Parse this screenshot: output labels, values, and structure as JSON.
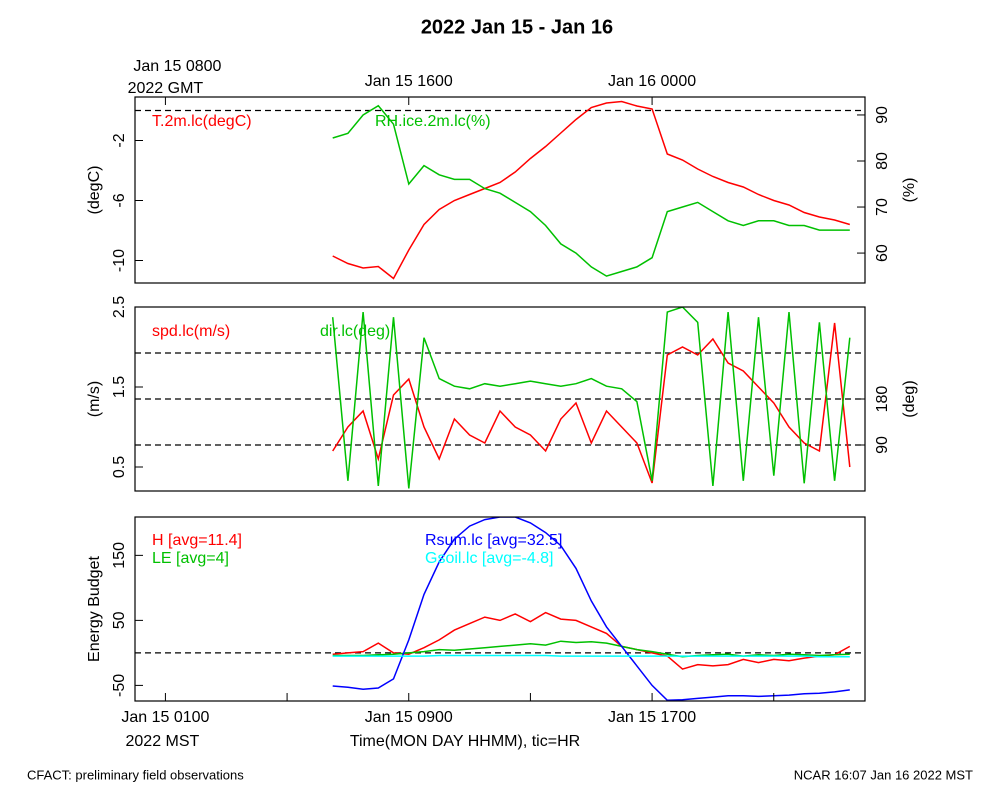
{
  "title": "2022 Jan 15 - Jan 16",
  "footer_left": "CFACT: preliminary field observations",
  "footer_right": "NCAR 16:07 Jan 16 2022 MST",
  "chart_data": [
    {
      "type": "line",
      "xlim": [
        0,
        24
      ],
      "top_xticks": [
        {
          "value": 1,
          "label": "Jan 15 0800"
        },
        {
          "value": 9,
          "label": "Jan 15 1600"
        },
        {
          "value": 17,
          "label": "Jan 16 0000"
        }
      ],
      "top_note": "2022 GMT",
      "x": [
        6.5,
        7,
        7.5,
        8,
        8.5,
        9,
        9.5,
        10,
        10.5,
        11,
        11.5,
        12,
        12.5,
        13,
        13.5,
        14,
        14.5,
        15,
        15.5,
        16,
        16.5,
        17,
        17.5,
        18,
        18.5,
        19,
        19.5,
        20,
        20.5,
        21,
        21.5,
        22,
        22.5,
        23,
        23.5
      ],
      "ylim": [
        -11.5,
        0.9
      ],
      "yticks": [
        -2,
        -6,
        -10
      ],
      "ylabel": "(degC)",
      "y2lim": [
        53.5,
        93.9
      ],
      "y2ticks": [
        90,
        80,
        70,
        60
      ],
      "y2label": "(%)",
      "hlines": [
        0
      ],
      "series": [
        {
          "name": "T.2m.lc(degC)",
          "color": "#ff0000",
          "values": [
            -9.7,
            -10.2,
            -10.5,
            -10.4,
            -11.2,
            -9.3,
            -7.6,
            -6.6,
            -6.0,
            -5.6,
            -5.2,
            -4.8,
            -4.1,
            -3.2,
            -2.4,
            -1.5,
            -0.6,
            0.2,
            0.5,
            0.6,
            0.3,
            0.1,
            -2.9,
            -3.3,
            -3.9,
            -4.4,
            -4.8,
            -5.1,
            -5.6,
            -6.0,
            -6.3,
            -6.8,
            -7.1,
            -7.3,
            -7.6
          ]
        },
        {
          "name": "RH.ice.2m.lc(%)",
          "color": "#00c000",
          "axis": "y2",
          "values": [
            85,
            86,
            90,
            92,
            88,
            75,
            79,
            77,
            76,
            76,
            74,
            73,
            71,
            69,
            66,
            62,
            60,
            57,
            55,
            56,
            57,
            59,
            69,
            70,
            71,
            69,
            67,
            66,
            67,
            67,
            66,
            66,
            65,
            65,
            65
          ]
        }
      ]
    },
    {
      "type": "line",
      "xlim": [
        0,
        24
      ],
      "x": [
        6.5,
        7,
        7.5,
        8,
        8.5,
        9,
        9.5,
        10,
        10.5,
        11,
        11.5,
        12,
        12.5,
        13,
        13.5,
        14,
        14.5,
        15,
        15.5,
        16,
        16.5,
        17,
        17.5,
        18,
        18.5,
        19,
        19.5,
        20,
        20.5,
        21,
        21.5,
        22,
        22.5,
        23,
        23.5
      ],
      "ylim": [
        0.2,
        2.5
      ],
      "yticks": [
        2.5,
        1.5,
        0.5
      ],
      "ylabel": "(m/s)",
      "y2lim": [
        0,
        360
      ],
      "y2ticks": [
        90,
        180
      ],
      "y2label": "(deg)",
      "y2hlines": [
        90,
        180,
        270
      ],
      "series": [
        {
          "name": "spd.lc(m/s)",
          "color": "#ff0000",
          "values": [
            0.7,
            1.0,
            1.2,
            0.6,
            1.4,
            1.6,
            1.0,
            0.6,
            1.1,
            0.9,
            0.8,
            1.2,
            1.0,
            0.9,
            0.7,
            1.1,
            1.3,
            0.8,
            1.2,
            1.0,
            0.8,
            0.3,
            1.9,
            2.0,
            1.9,
            2.1,
            1.8,
            1.7,
            1.5,
            1.3,
            1.0,
            0.8,
            0.7,
            2.3,
            0.5
          ]
        },
        {
          "name": "dir.lc(deg)",
          "color": "#00c000",
          "axis": "y2",
          "values": [
            340,
            20,
            350,
            10,
            340,
            5,
            300,
            220,
            205,
            200,
            210,
            205,
            210,
            215,
            210,
            205,
            210,
            220,
            205,
            200,
            175,
            20,
            350,
            360,
            330,
            10,
            350,
            20,
            340,
            30,
            350,
            15,
            330,
            20,
            300
          ]
        }
      ]
    },
    {
      "type": "line",
      "xlim": [
        0,
        24
      ],
      "xticks": [
        {
          "value": 1,
          "label": "Jan 15 0100"
        },
        {
          "value": 9,
          "label": "Jan 15 0900"
        },
        {
          "value": 17,
          "label": "Jan 15 1700"
        }
      ],
      "xminor": [
        5,
        13,
        21
      ],
      "x_note": "2022 MST",
      "xlabel": "Time(MON DAY HHMM), tic=HR",
      "x": [
        6.5,
        7,
        7.5,
        8,
        8.5,
        9,
        9.5,
        10,
        10.5,
        11,
        11.5,
        12,
        12.5,
        13,
        13.5,
        14,
        14.5,
        15,
        15.5,
        16,
        16.5,
        17,
        17.5,
        18,
        18.5,
        19,
        19.5,
        20,
        20.5,
        21,
        21.5,
        22,
        22.5,
        23,
        23.5
      ],
      "ylim": [
        -74,
        209
      ],
      "yticks": [
        150,
        50,
        -50
      ],
      "ylabel": "Energy Budget",
      "hlines": [
        0
      ],
      "series": [
        {
          "name": "H [avg=11.4]",
          "color": "#ff0000",
          "values": [
            -2,
            0,
            2,
            15,
            0,
            -2,
            8,
            20,
            35,
            45,
            55,
            50,
            60,
            48,
            62,
            52,
            50,
            40,
            30,
            10,
            5,
            0,
            -5,
            -25,
            -18,
            -20,
            -18,
            -10,
            -15,
            -10,
            -12,
            -8,
            -5,
            -3,
            10
          ]
        },
        {
          "name": "LE [avg=4]",
          "color": "#00c000",
          "values": [
            -4,
            -4,
            -4,
            -3,
            -2,
            0,
            2,
            5,
            4,
            6,
            8,
            10,
            12,
            14,
            12,
            18,
            16,
            17,
            15,
            10,
            5,
            2,
            -2,
            -6,
            -4,
            -3,
            -2,
            -5,
            -3,
            -4,
            -2,
            -3,
            -4,
            -3,
            -2
          ]
        },
        {
          "name": "Rsum.lc [avg=32.5]",
          "color": "#0000ff",
          "values": [
            -51,
            -53,
            -56,
            -54,
            -40,
            20,
            90,
            140,
            175,
            195,
            205,
            209,
            209,
            200,
            185,
            165,
            130,
            80,
            40,
            10,
            -20,
            -50,
            -73,
            -72,
            -70,
            -68,
            -66,
            -66,
            -67,
            -66,
            -65,
            -63,
            -62,
            -60,
            -57
          ]
        },
        {
          "name": "Gsoil.lc [avg=-4.8]",
          "color": "#00ffff",
          "values": [
            -5,
            -5,
            -5,
            -5,
            -5,
            -5,
            -5,
            -4,
            -4,
            -4,
            -4,
            -4,
            -4,
            -4,
            -4,
            -5,
            -5,
            -5,
            -5,
            -5,
            -5,
            -5,
            -5,
            -5,
            -5,
            -5,
            -5,
            -5,
            -5,
            -5,
            -5,
            -5,
            -6,
            -6,
            -6
          ]
        }
      ]
    }
  ]
}
